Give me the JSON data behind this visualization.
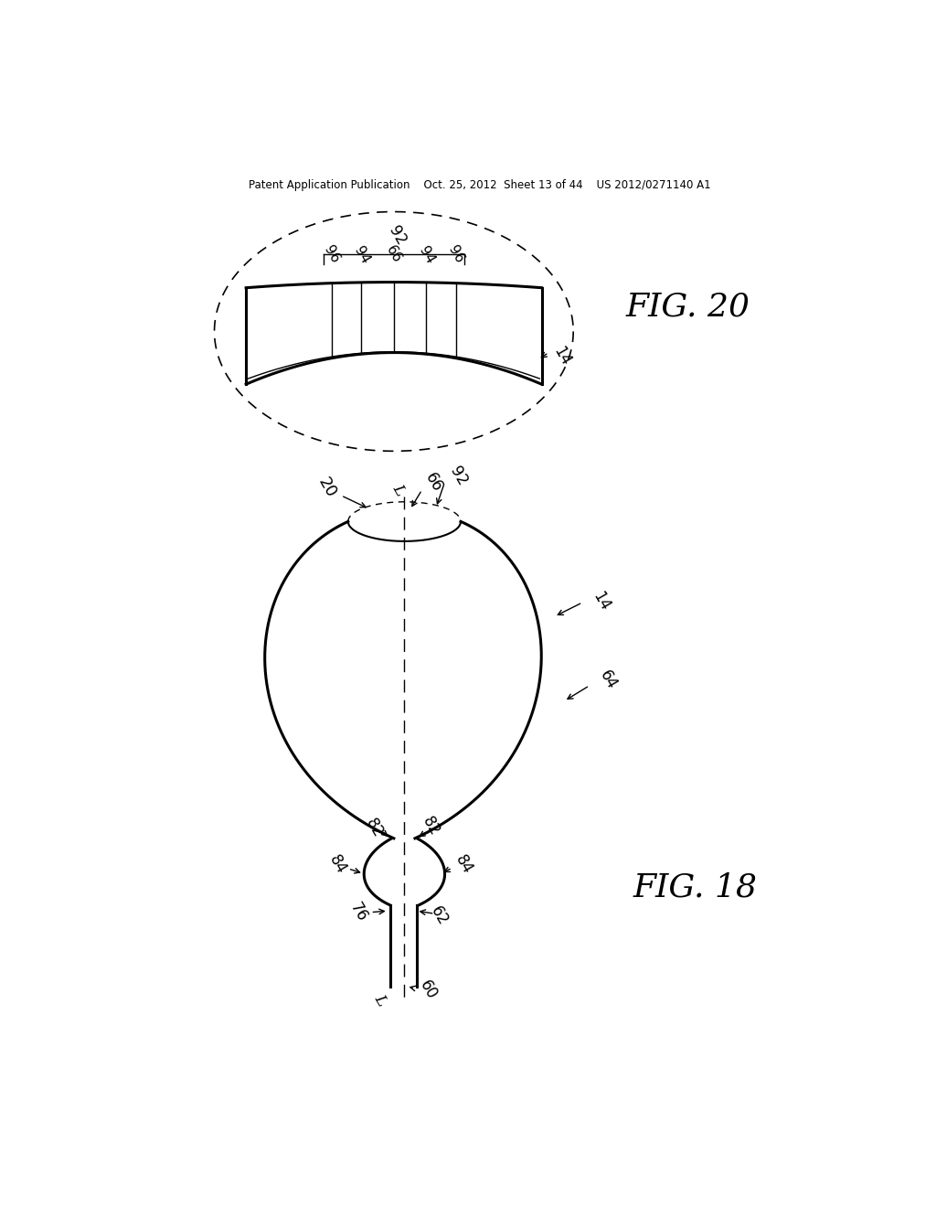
{
  "bg_color": "#ffffff",
  "line_color": "#000000",
  "header_text": "Patent Application Publication    Oct. 25, 2012  Sheet 13 of 44    US 2012/0271140 A1",
  "fig20_label": "FIG. 20",
  "fig18_label": "FIG. 18"
}
